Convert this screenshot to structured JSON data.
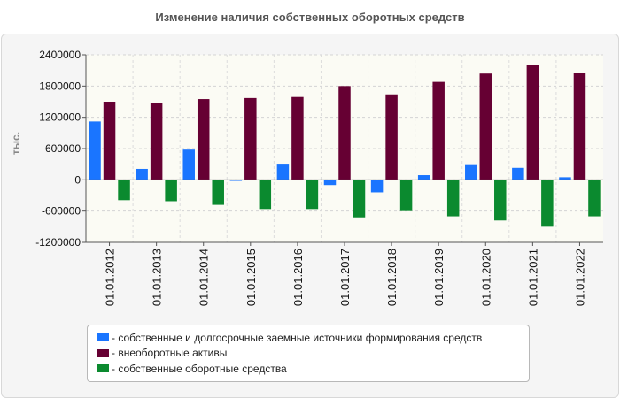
{
  "title": "Изменение наличия собственных оборотных средств",
  "chart_data": {
    "type": "bar",
    "ylabel": "тыс.",
    "ylim": [
      -1200000,
      2400000
    ],
    "yticks": [
      2400000,
      1800000,
      1200000,
      600000,
      0,
      -600000,
      -1200000
    ],
    "categories": [
      "01.01.2012",
      "01.01.2013",
      "01.01.2014",
      "01.01.2015",
      "01.01.2016",
      "01.01.2017",
      "01.01.2018",
      "01.01.2019",
      "01.01.2020",
      "01.01.2021",
      "01.01.2022"
    ],
    "series": [
      {
        "name": "- собственные и долгосрочные заемные источники формирования средств",
        "color": "#1a75ff",
        "values": [
          1120000,
          210000,
          580000,
          -20000,
          310000,
          -100000,
          -240000,
          90000,
          300000,
          230000,
          50000
        ]
      },
      {
        "name": "- внеоборотные активы",
        "color": "#660033",
        "values": [
          1500000,
          1480000,
          1550000,
          1570000,
          1590000,
          1800000,
          1640000,
          1880000,
          2040000,
          2200000,
          2060000
        ]
      },
      {
        "name": "- собственные оборотные средства",
        "color": "#0b8a2f",
        "values": [
          -390000,
          -410000,
          -480000,
          -560000,
          -560000,
          -720000,
          -600000,
          -700000,
          -780000,
          -900000,
          -700000
        ]
      }
    ]
  }
}
